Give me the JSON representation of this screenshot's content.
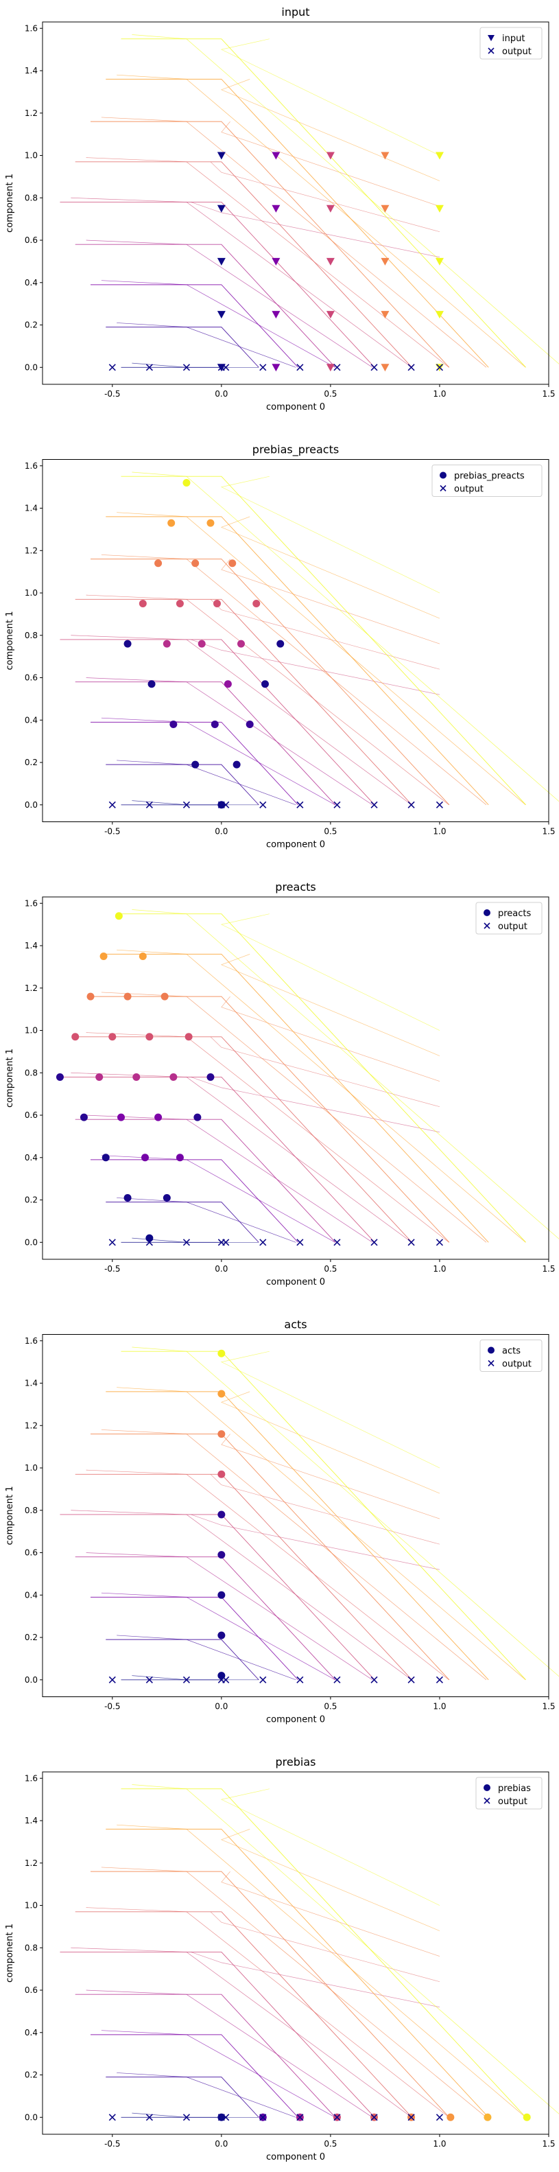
{
  "shared": {
    "xlabel": "component 0",
    "ylabel": "component 1",
    "output_legend": "output",
    "xticks": [
      -0.5,
      0.0,
      0.5,
      1.0,
      1.5
    ],
    "yticks": [
      0.0,
      0.2,
      0.4,
      0.6,
      0.8,
      1.0,
      1.2,
      1.4,
      1.6
    ],
    "xlim": [
      -0.82,
      1.5
    ],
    "ylim": [
      -0.08,
      1.63
    ],
    "grid": false,
    "legend_position": "top-right"
  },
  "chart_data": [
    {
      "type": "scatter",
      "title": "input",
      "legend": [
        "input",
        "output"
      ],
      "marker": "triangle-down",
      "series": [
        {
          "name": "input",
          "points": [
            {
              "x": 0.0,
              "y": 0.0,
              "c": 0.0
            },
            {
              "x": 0.0,
              "y": 0.25,
              "c": 0.0
            },
            {
              "x": 0.0,
              "y": 0.5,
              "c": 0.0
            },
            {
              "x": 0.0,
              "y": 0.75,
              "c": 0.0
            },
            {
              "x": 0.0,
              "y": 1.0,
              "c": 0.0
            },
            {
              "x": 0.25,
              "y": 0.0,
              "c": 0.25
            },
            {
              "x": 0.25,
              "y": 0.25,
              "c": 0.25
            },
            {
              "x": 0.25,
              "y": 0.5,
              "c": 0.25
            },
            {
              "x": 0.25,
              "y": 0.75,
              "c": 0.25
            },
            {
              "x": 0.25,
              "y": 1.0,
              "c": 0.25
            },
            {
              "x": 0.5,
              "y": 0.0,
              "c": 0.5
            },
            {
              "x": 0.5,
              "y": 0.25,
              "c": 0.5
            },
            {
              "x": 0.5,
              "y": 0.5,
              "c": 0.5
            },
            {
              "x": 0.5,
              "y": 0.75,
              "c": 0.5
            },
            {
              "x": 0.5,
              "y": 1.0,
              "c": 0.5
            },
            {
              "x": 0.75,
              "y": 0.0,
              "c": 0.75
            },
            {
              "x": 0.75,
              "y": 0.25,
              "c": 0.75
            },
            {
              "x": 0.75,
              "y": 0.5,
              "c": 0.75
            },
            {
              "x": 0.75,
              "y": 0.75,
              "c": 0.75
            },
            {
              "x": 0.75,
              "y": 1.0,
              "c": 0.75
            },
            {
              "x": 1.0,
              "y": 0.0,
              "c": 1.0
            },
            {
              "x": 1.0,
              "y": 0.25,
              "c": 1.0
            },
            {
              "x": 1.0,
              "y": 0.5,
              "c": 1.0
            },
            {
              "x": 1.0,
              "y": 0.75,
              "c": 1.0
            },
            {
              "x": 1.0,
              "y": 1.0,
              "c": 1.0
            }
          ]
        },
        {
          "name": "output",
          "points": [
            {
              "x": -0.5,
              "y": 0.0
            },
            {
              "x": -0.33,
              "y": 0.0
            },
            {
              "x": -0.16,
              "y": 0.0
            },
            {
              "x": 0.0,
              "y": 0.0
            },
            {
              "x": 0.02,
              "y": 0.0
            },
            {
              "x": 0.19,
              "y": 0.0
            },
            {
              "x": 0.36,
              "y": 0.0
            },
            {
              "x": 0.53,
              "y": 0.0
            },
            {
              "x": 0.7,
              "y": 0.0
            },
            {
              "x": 0.87,
              "y": 0.0
            },
            {
              "x": 1.0,
              "y": 0.0
            }
          ]
        }
      ]
    },
    {
      "type": "scatter",
      "title": "prebias_preacts",
      "legend": [
        "prebias_preacts",
        "output"
      ],
      "marker": "circle",
      "series": [
        {
          "name": "prebias_preacts",
          "points": [
            {
              "x": 0.0,
              "y": 0.0,
              "c": 0.0
            },
            {
              "x": -0.12,
              "y": 0.19,
              "c": 0.02
            },
            {
              "x": 0.07,
              "y": 0.19,
              "c": 0.02
            },
            {
              "x": -0.22,
              "y": 0.38,
              "c": 0.08
            },
            {
              "x": -0.03,
              "y": 0.38,
              "c": 0.08
            },
            {
              "x": 0.13,
              "y": 0.38,
              "c": 0.08
            },
            {
              "x": -0.32,
              "y": 0.57,
              "c": 0.02
            },
            {
              "x": 0.03,
              "y": 0.57,
              "c": 0.3
            },
            {
              "x": 0.2,
              "y": 0.57,
              "c": 0.02
            },
            {
              "x": -0.43,
              "y": 0.76,
              "c": 0.02
            },
            {
              "x": -0.25,
              "y": 0.76,
              "c": 0.4
            },
            {
              "x": -0.09,
              "y": 0.76,
              "c": 0.4
            },
            {
              "x": 0.09,
              "y": 0.76,
              "c": 0.4
            },
            {
              "x": 0.27,
              "y": 0.76,
              "c": 0.02
            },
            {
              "x": -0.36,
              "y": 0.95,
              "c": 0.55
            },
            {
              "x": -0.19,
              "y": 0.95,
              "c": 0.55
            },
            {
              "x": -0.02,
              "y": 0.95,
              "c": 0.55
            },
            {
              "x": 0.16,
              "y": 0.95,
              "c": 0.55
            },
            {
              "x": -0.29,
              "y": 1.14,
              "c": 0.72
            },
            {
              "x": -0.12,
              "y": 1.14,
              "c": 0.72
            },
            {
              "x": 0.05,
              "y": 1.14,
              "c": 0.72
            },
            {
              "x": -0.23,
              "y": 1.33,
              "c": 0.86
            },
            {
              "x": -0.05,
              "y": 1.33,
              "c": 0.86
            },
            {
              "x": -0.16,
              "y": 1.52,
              "c": 1.0
            }
          ]
        },
        {
          "name": "output",
          "points": [
            {
              "x": -0.5,
              "y": 0.0
            },
            {
              "x": -0.33,
              "y": 0.0
            },
            {
              "x": -0.16,
              "y": 0.0
            },
            {
              "x": 0.0,
              "y": 0.0
            },
            {
              "x": 0.02,
              "y": 0.0
            },
            {
              "x": 0.19,
              "y": 0.0
            },
            {
              "x": 0.36,
              "y": 0.0
            },
            {
              "x": 0.53,
              "y": 0.0
            },
            {
              "x": 0.7,
              "y": 0.0
            },
            {
              "x": 0.87,
              "y": 0.0
            },
            {
              "x": 1.0,
              "y": 0.0
            }
          ]
        }
      ]
    },
    {
      "type": "scatter",
      "title": "preacts",
      "legend": [
        "preacts",
        "output"
      ],
      "marker": "circle",
      "series": [
        {
          "name": "preacts",
          "points": [
            {
              "x": -0.33,
              "y": 0.02,
              "c": 0.0
            },
            {
              "x": -0.43,
              "y": 0.21,
              "c": 0.02
            },
            {
              "x": -0.25,
              "y": 0.21,
              "c": 0.02
            },
            {
              "x": -0.53,
              "y": 0.4,
              "c": 0.02
            },
            {
              "x": -0.35,
              "y": 0.4,
              "c": 0.22
            },
            {
              "x": -0.19,
              "y": 0.4,
              "c": 0.22
            },
            {
              "x": -0.63,
              "y": 0.59,
              "c": 0.05
            },
            {
              "x": -0.46,
              "y": 0.59,
              "c": 0.25
            },
            {
              "x": -0.29,
              "y": 0.59,
              "c": 0.25
            },
            {
              "x": -0.11,
              "y": 0.59,
              "c": 0.05
            },
            {
              "x": -0.74,
              "y": 0.78,
              "c": 0.05
            },
            {
              "x": -0.56,
              "y": 0.78,
              "c": 0.4
            },
            {
              "x": -0.39,
              "y": 0.78,
              "c": 0.4
            },
            {
              "x": -0.22,
              "y": 0.78,
              "c": 0.4
            },
            {
              "x": -0.05,
              "y": 0.78,
              "c": 0.05
            },
            {
              "x": -0.67,
              "y": 0.97,
              "c": 0.55
            },
            {
              "x": -0.5,
              "y": 0.97,
              "c": 0.55
            },
            {
              "x": -0.33,
              "y": 0.97,
              "c": 0.55
            },
            {
              "x": -0.15,
              "y": 0.97,
              "c": 0.55
            },
            {
              "x": -0.6,
              "y": 1.16,
              "c": 0.72
            },
            {
              "x": -0.43,
              "y": 1.16,
              "c": 0.72
            },
            {
              "x": -0.26,
              "y": 1.16,
              "c": 0.72
            },
            {
              "x": -0.54,
              "y": 1.35,
              "c": 0.86
            },
            {
              "x": -0.36,
              "y": 1.35,
              "c": 0.86
            },
            {
              "x": -0.47,
              "y": 1.54,
              "c": 1.0
            }
          ]
        },
        {
          "name": "output",
          "points": [
            {
              "x": -0.5,
              "y": 0.0
            },
            {
              "x": -0.33,
              "y": 0.0
            },
            {
              "x": -0.16,
              "y": 0.0
            },
            {
              "x": 0.0,
              "y": 0.0
            },
            {
              "x": 0.02,
              "y": 0.0
            },
            {
              "x": 0.19,
              "y": 0.0
            },
            {
              "x": 0.36,
              "y": 0.0
            },
            {
              "x": 0.53,
              "y": 0.0
            },
            {
              "x": 0.7,
              "y": 0.0
            },
            {
              "x": 0.87,
              "y": 0.0
            },
            {
              "x": 1.0,
              "y": 0.0
            }
          ]
        }
      ]
    },
    {
      "type": "scatter",
      "title": "acts",
      "legend": [
        "acts",
        "output"
      ],
      "marker": "circle",
      "series": [
        {
          "name": "acts",
          "points": [
            {
              "x": 0.0,
              "y": 0.02,
              "c": 0.0
            },
            {
              "x": 0.0,
              "y": 0.21,
              "c": 0.02
            },
            {
              "x": 0.0,
              "y": 0.4,
              "c": 0.02
            },
            {
              "x": 0.0,
              "y": 0.59,
              "c": 0.05
            },
            {
              "x": 0.0,
              "y": 0.78,
              "c": 0.05
            },
            {
              "x": 0.0,
              "y": 0.97,
              "c": 0.55
            },
            {
              "x": 0.0,
              "y": 1.16,
              "c": 0.72
            },
            {
              "x": 0.0,
              "y": 1.35,
              "c": 0.86
            },
            {
              "x": 0.0,
              "y": 1.54,
              "c": 1.0
            }
          ]
        },
        {
          "name": "output",
          "points": [
            {
              "x": -0.5,
              "y": 0.0
            },
            {
              "x": -0.33,
              "y": 0.0
            },
            {
              "x": -0.16,
              "y": 0.0
            },
            {
              "x": 0.0,
              "y": 0.0
            },
            {
              "x": 0.02,
              "y": 0.0
            },
            {
              "x": 0.19,
              "y": 0.0
            },
            {
              "x": 0.36,
              "y": 0.0
            },
            {
              "x": 0.53,
              "y": 0.0
            },
            {
              "x": 0.7,
              "y": 0.0
            },
            {
              "x": 0.87,
              "y": 0.0
            },
            {
              "x": 1.0,
              "y": 0.0
            }
          ]
        }
      ]
    },
    {
      "type": "scatter",
      "title": "prebias",
      "legend": [
        "prebias",
        "output"
      ],
      "marker": "circle",
      "series": [
        {
          "name": "prebias",
          "points": [
            {
              "x": 0.0,
              "y": 0.0,
              "c": 0.0
            },
            {
              "x": 0.19,
              "y": 0.0,
              "c": 0.15
            },
            {
              "x": 0.36,
              "y": 0.0,
              "c": 0.35
            },
            {
              "x": 0.53,
              "y": 0.0,
              "c": 0.5
            },
            {
              "x": 0.7,
              "y": 0.0,
              "c": 0.62
            },
            {
              "x": 0.87,
              "y": 0.0,
              "c": 0.75
            },
            {
              "x": 1.05,
              "y": 0.0,
              "c": 0.82
            },
            {
              "x": 1.22,
              "y": 0.0,
              "c": 0.9
            },
            {
              "x": 1.4,
              "y": 0.0,
              "c": 1.0
            }
          ]
        },
        {
          "name": "output",
          "points": [
            {
              "x": -0.5,
              "y": 0.0
            },
            {
              "x": -0.33,
              "y": 0.0
            },
            {
              "x": -0.16,
              "y": 0.0
            },
            {
              "x": 0.0,
              "y": 0.0
            },
            {
              "x": 0.02,
              "y": 0.0
            },
            {
              "x": 0.19,
              "y": 0.0
            },
            {
              "x": 0.36,
              "y": 0.0
            },
            {
              "x": 0.53,
              "y": 0.0
            },
            {
              "x": 0.7,
              "y": 0.0
            },
            {
              "x": 0.87,
              "y": 0.0
            },
            {
              "x": 1.0,
              "y": 0.0
            }
          ]
        }
      ]
    }
  ],
  "trajectories": {
    "levels": [
      0.0,
      0.19,
      0.39,
      0.58,
      0.78,
      0.97,
      1.16,
      1.36,
      1.55
    ],
    "colors": [
      "#0d0887",
      "#3b049a",
      "#7e03a8",
      "#b12a90",
      "#cc4778",
      "#e16462",
      "#f2844b",
      "#fca636",
      "#f0f921"
    ]
  }
}
